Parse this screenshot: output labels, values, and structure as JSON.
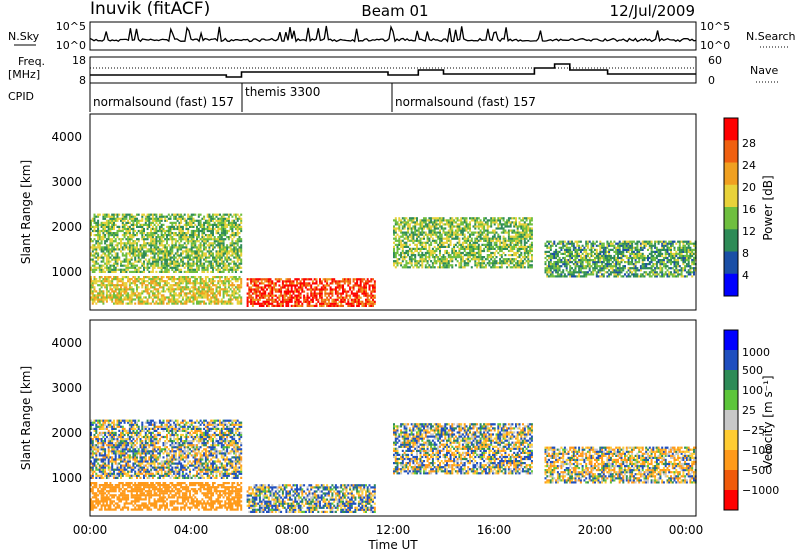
{
  "header": {
    "station": "Inuvik (fitACF)",
    "beam": "Beam 01",
    "date": "12/Jul/2009"
  },
  "top_panels": {
    "nsky_label": "N.Sky",
    "nsky_ticks": [
      "10^5",
      "10^0"
    ],
    "nsearch_ticks": [
      "10^5",
      "10^0"
    ],
    "nsearch_label": "N.Search",
    "freq_label_1": "Freq.",
    "freq_label_2": "[MHz]",
    "freq_ticks": [
      "18",
      "8"
    ],
    "nave_ticks": [
      "60",
      "0"
    ],
    "nave_label": "Nave",
    "cpid_label": "CPID"
  },
  "cpid_segments": [
    {
      "label": "normalsound (fast) 157",
      "start_hour": 0,
      "end_hour": 6
    },
    {
      "label": "themis 3300",
      "start_hour": 6,
      "end_hour": 12
    },
    {
      "label": "normalsound (fast) 157",
      "start_hour": 12,
      "end_hour": 24
    }
  ],
  "power_panel": {
    "ylabel": "Slant Range [km]",
    "yticks": [
      "1000",
      "2000",
      "3000",
      "4000"
    ],
    "colorbar_label": "Power [dB]",
    "colorbar_ticks": [
      "4",
      "8",
      "12",
      "16",
      "20",
      "24",
      "28"
    ],
    "colors": [
      "#0000ff",
      "#1a4fa6",
      "#2e8b57",
      "#6fbf3f",
      "#e8d23a",
      "#f0a020",
      "#f06010",
      "#ff0000"
    ]
  },
  "velocity_panel": {
    "ylabel": "Slant Range [km]",
    "yticks": [
      "1000",
      "2000",
      "3000",
      "4000"
    ],
    "colorbar_label": "Velocity [m s⁻¹]",
    "colorbar_ticks": [
      "1000",
      "500",
      "100",
      "25",
      "−25",
      "−100",
      "−500",
      "−1000"
    ],
    "colors": [
      "#0000ff",
      "#1f4fbf",
      "#2e8b57",
      "#5cc53a",
      "#c8c8c8",
      "#ffcc33",
      "#ff9a1a",
      "#f05a0a",
      "#ff0000"
    ]
  },
  "xaxis": {
    "ticks": [
      "00:00",
      "04:00",
      "08:00",
      "12:00",
      "16:00",
      "20:00",
      "00:00"
    ],
    "label": "Time UT"
  },
  "chart_data": {
    "type": "heatmap",
    "title": "Inuvik (fitACF)  Beam 01  12/Jul/2009",
    "xlabel": "Time UT",
    "ylabel": "Slant Range [km]",
    "xlim_hours": [
      0,
      24
    ],
    "ylim_km": [
      180,
      4500
    ],
    "panels": [
      {
        "name": "Power [dB]",
        "range": [
          0,
          30
        ]
      },
      {
        "name": "Velocity [m s⁻¹]",
        "range": [
          -1000,
          1000
        ]
      }
    ],
    "approx_echo_bands": [
      {
        "t0": 0,
        "t1": 6,
        "range_km": [
          1000,
          2300
        ],
        "power_db": 14,
        "velocity": 25
      },
      {
        "t0": 0,
        "t1": 6,
        "range_km": [
          300,
          900
        ],
        "power_db": 18,
        "velocity": -300
      },
      {
        "t0": 6.2,
        "t1": 11.3,
        "range_km": [
          250,
          850
        ],
        "power_db": 28,
        "velocity": 50
      },
      {
        "t0": 12,
        "t1": 17.5,
        "range_km": [
          1100,
          2200
        ],
        "power_db": 14,
        "velocity": 25
      },
      {
        "t0": 18,
        "t1": 24,
        "range_km": [
          900,
          1700
        ],
        "power_db": 12,
        "velocity": -25
      }
    ]
  }
}
